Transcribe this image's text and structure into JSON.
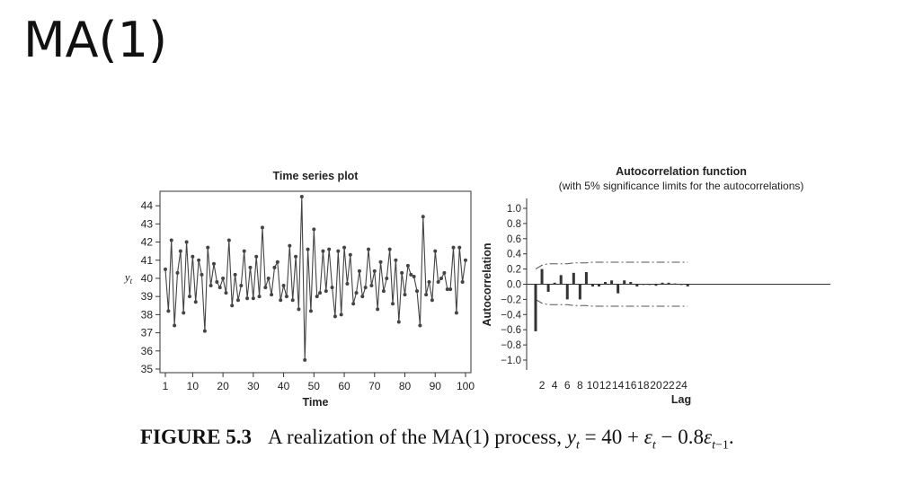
{
  "slide": {
    "title": "MA(1)"
  },
  "caption": {
    "label": "FIGURE 5.3",
    "text": "A realization of the MA(1) process,"
  },
  "colors": {
    "series": "#444444",
    "axis": "#333333",
    "limits": "#555555"
  },
  "chart_data": [
    {
      "type": "line",
      "title": "Time series plot",
      "xlabel": "Time",
      "ylabel": "y_t",
      "xlim": [
        1,
        100
      ],
      "ylim": [
        35,
        44.6
      ],
      "xticks": [
        1,
        10,
        20,
        30,
        40,
        50,
        60,
        70,
        80,
        90,
        100
      ],
      "yticks": [
        35,
        36,
        37,
        38,
        39,
        40,
        41,
        42,
        43,
        44
      ],
      "markers": true,
      "x": [
        1,
        2,
        3,
        4,
        5,
        6,
        7,
        8,
        9,
        10,
        11,
        12,
        13,
        14,
        15,
        16,
        17,
        18,
        19,
        20,
        21,
        22,
        23,
        24,
        25,
        26,
        27,
        28,
        29,
        30,
        31,
        32,
        33,
        34,
        35,
        36,
        37,
        38,
        39,
        40,
        41,
        42,
        43,
        44,
        45,
        46,
        47,
        48,
        49,
        50,
        51,
        52,
        53,
        54,
        55,
        56,
        57,
        58,
        59,
        60,
        61,
        62,
        63,
        64,
        65,
        66,
        67,
        68,
        69,
        70,
        71,
        72,
        73,
        74,
        75,
        76,
        77,
        78,
        79,
        80,
        81,
        82,
        83,
        84,
        85,
        86,
        87,
        88,
        89,
        90,
        91,
        92,
        93,
        94,
        95,
        96,
        97,
        98,
        99,
        100
      ],
      "values": [
        40.5,
        38.2,
        42.1,
        37.4,
        40.3,
        41.5,
        38.1,
        42.0,
        39.0,
        41.2,
        38.7,
        41.0,
        40.2,
        37.1,
        41.7,
        39.6,
        40.8,
        39.8,
        39.5,
        40.0,
        39.2,
        42.1,
        38.5,
        40.2,
        38.8,
        39.6,
        41.5,
        38.9,
        40.6,
        38.9,
        41.2,
        39.0,
        42.8,
        39.5,
        40.0,
        39.1,
        40.6,
        40.9,
        38.8,
        39.6,
        39.0,
        41.8,
        38.8,
        41.2,
        38.3,
        44.5,
        35.5,
        41.6,
        38.2,
        42.7,
        39.0,
        39.2,
        41.5,
        39.3,
        41.6,
        39.5,
        37.9,
        41.5,
        38.0,
        41.7,
        39.7,
        41.3,
        38.6,
        39.2,
        40.4,
        39.0,
        39.5,
        41.6,
        39.6,
        40.4,
        38.3,
        40.9,
        39.3,
        40.0,
        41.6,
        38.6,
        41.0,
        37.6,
        40.3,
        39.1,
        40.7,
        40.2,
        40.1,
        39.3,
        37.4,
        43.4,
        39.1,
        39.8,
        38.8,
        41.5,
        39.8,
        40.0,
        40.3,
        39.4,
        39.4,
        41.7,
        38.1,
        41.7,
        39.8,
        41.0
      ]
    },
    {
      "type": "bar",
      "title": "Autocorrelation function",
      "subtitle": "(with 5% significance limits for the autocorrelations)",
      "xlabel": "Lag",
      "ylabel": "Autocorrelation",
      "xlim": [
        1,
        25
      ],
      "ylim": [
        -1.0,
        1.0
      ],
      "xticks": [
        2,
        4,
        6,
        8,
        10,
        12,
        14,
        16,
        18,
        20,
        22,
        24
      ],
      "yticks": [
        1.0,
        0.8,
        0.6,
        0.4,
        0.2,
        0.0,
        -0.2,
        -0.4,
        -0.6,
        -0.8,
        -1.0
      ],
      "ytick_labels": [
        "1.0",
        "0.8",
        "0.6",
        "0.4",
        "0.2",
        "0.0",
        "−0.2",
        "−0.4",
        "−0.6",
        "−0.8",
        "−1.0"
      ],
      "lags": [
        1,
        2,
        3,
        4,
        5,
        6,
        7,
        8,
        9,
        10,
        11,
        12,
        13,
        14,
        15,
        16,
        17,
        18,
        19,
        20,
        21,
        22,
        23,
        24,
        25
      ],
      "values": [
        -0.62,
        0.2,
        -0.1,
        0.02,
        0.12,
        -0.2,
        0.15,
        -0.2,
        0.16,
        -0.03,
        -0.03,
        0.03,
        0.05,
        -0.12,
        0.05,
        0.03,
        -0.03,
        0.0,
        -0.01,
        -0.02,
        0.02,
        0.02,
        0.01,
        -0.01,
        -0.03
      ],
      "significance_limits": {
        "lags": [
          1,
          2,
          3,
          4,
          5,
          6,
          7,
          8,
          9,
          10,
          11,
          12,
          13,
          14,
          15,
          16,
          17,
          18,
          19,
          20,
          21,
          22,
          23,
          24,
          25
        ],
        "upper": [
          0.2,
          0.25,
          0.27,
          0.27,
          0.27,
          0.27,
          0.28,
          0.28,
          0.28,
          0.29,
          0.29,
          0.29,
          0.29,
          0.29,
          0.29,
          0.29,
          0.29,
          0.29,
          0.29,
          0.29,
          0.29,
          0.29,
          0.29,
          0.29,
          0.29
        ]
      }
    }
  ]
}
